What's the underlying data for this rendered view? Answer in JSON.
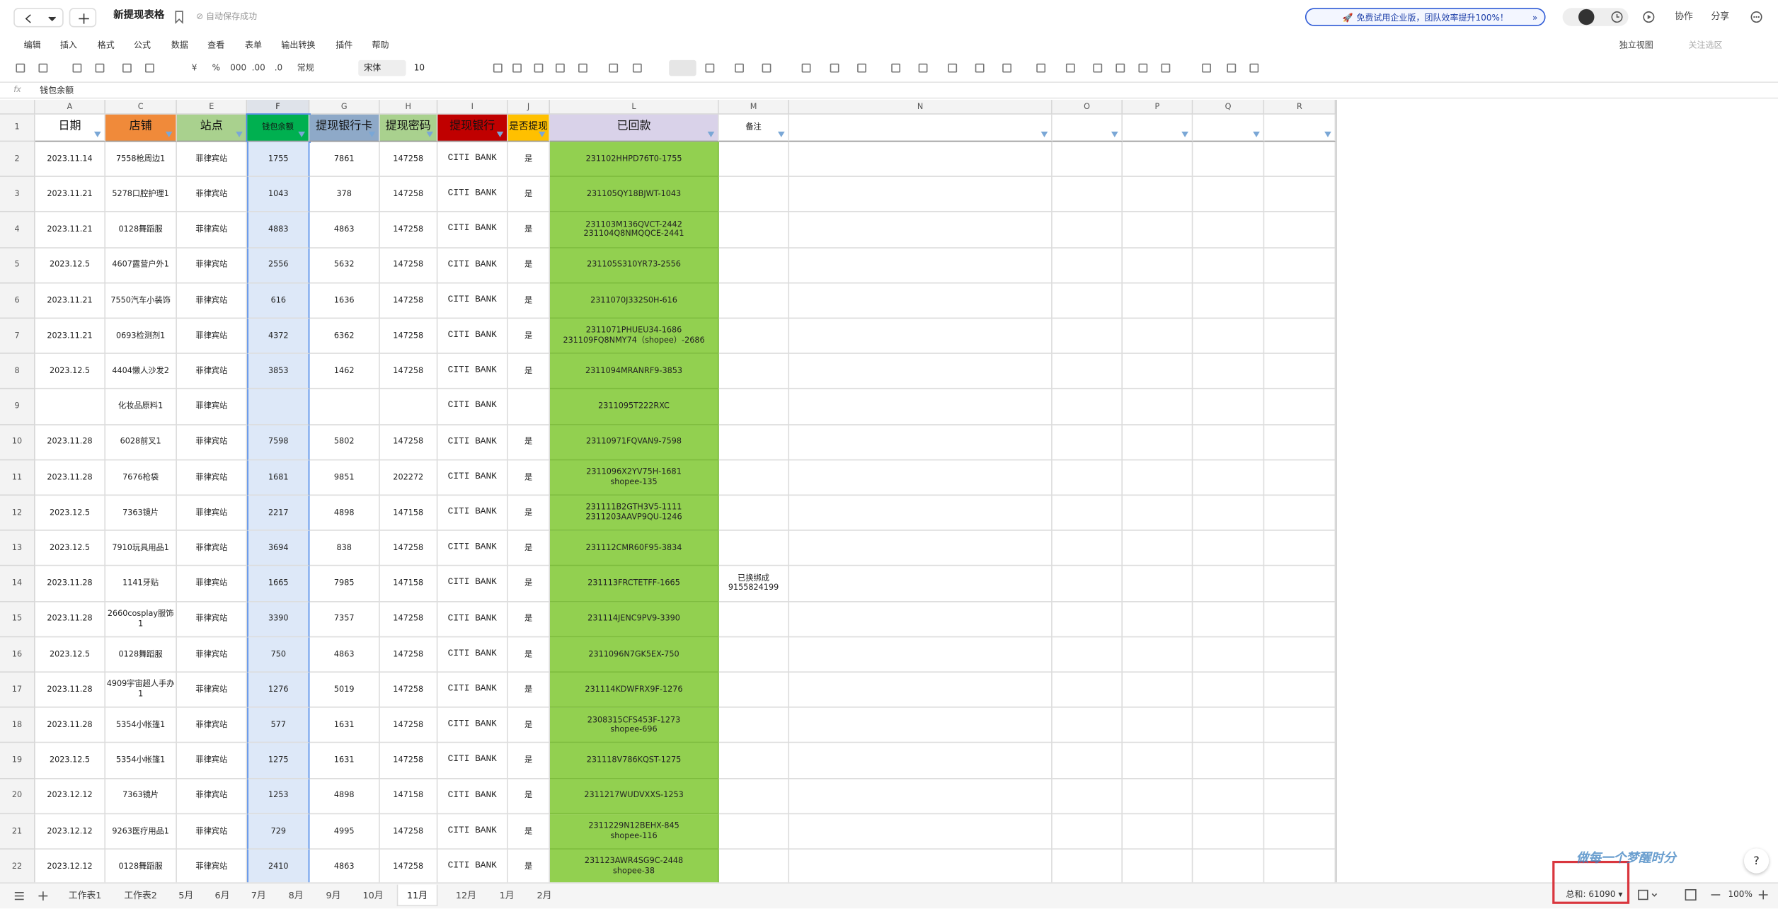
{
  "header": {
    "title": "新提现表格",
    "save_status": "自动保存成功",
    "promo": "免费试用企业版，团队效率提升100%！",
    "buttons": [
      "协作",
      "分享"
    ]
  },
  "menu": {
    "items": [
      "编辑",
      "插入",
      "格式",
      "公式",
      "数据",
      "查看",
      "表单",
      "输出转换",
      "插件",
      "帮助"
    ],
    "right": [
      "独立视图",
      "关注选区"
    ]
  },
  "toolbar": {
    "currency": "¥",
    "percent": "%",
    "thousands": "000",
    "inc_decimal": ".00",
    "dec_decimal": ".0",
    "number_format": "常规",
    "font": "宋体",
    "font_size": "10"
  },
  "formula_bar": {
    "label": "fx",
    "content": "钱包余额"
  },
  "grid": {
    "columns": [
      "A",
      "C",
      "E",
      "F",
      "G",
      "H",
      "I",
      "J",
      "L",
      "M",
      "N",
      "O",
      "P",
      "Q",
      "R"
    ],
    "row_numbers": [
      "1",
      "2",
      "3",
      "4",
      "5",
      "6",
      "7",
      "8",
      "9",
      "10",
      "11",
      "12",
      "13",
      "14",
      "15",
      "16",
      "17",
      "18",
      "19",
      "20",
      "21",
      "22"
    ],
    "header": [
      "日期",
      "店铺",
      "站点",
      "钱包余额",
      "提现银行卡",
      "提现密码",
      "提现银行",
      "是否提现",
      "已回款",
      "备注"
    ],
    "rows": [
      [
        "2023.11.14",
        "7558枪周边1",
        "菲律宾站",
        "1755",
        "7861",
        "147258",
        "CITI BANK",
        "是",
        "231102HHPD76T0-1755",
        ""
      ],
      [
        "2023.11.21",
        "5278口腔护理1",
        "菲律宾站",
        "1043",
        "378",
        "147258",
        "CITI BANK",
        "是",
        "231105QY18BJWT-1043",
        ""
      ],
      [
        "2023.11.21",
        "0128舞蹈服",
        "菲律宾站",
        "4883",
        "4863",
        "147258",
        "CITI BANK",
        "是",
        "231103M136QVCT-2442\n231104Q8NMQQCE-2441",
        ""
      ],
      [
        "2023.12.5",
        "4607露营户外1",
        "菲律宾站",
        "2556",
        "5632",
        "147258",
        "CITI BANK",
        "是",
        "231105S310YR73-2556",
        ""
      ],
      [
        "2023.11.21",
        "7550汽车小装饰",
        "菲律宾站",
        "616",
        "1636",
        "147258",
        "CITI BANK",
        "是",
        "2311070J332S0H-616",
        ""
      ],
      [
        "2023.11.21",
        "0693检测剂1",
        "菲律宾站",
        "4372",
        "6362",
        "147258",
        "CITI BANK",
        "是",
        "2311071PHUEU34-1686\n231109FQ8NMY74（shopee）-2686",
        ""
      ],
      [
        "2023.12.5",
        "4404懒人沙发2",
        "菲律宾站",
        "3853",
        "1462",
        "147258",
        "CITI BANK",
        "是",
        "2311094MRANRF9-3853",
        ""
      ],
      [
        "",
        "化妆品原料1",
        "菲律宾站",
        "",
        "",
        "",
        "CITI BANK",
        "",
        "2311095T222RXC",
        ""
      ],
      [
        "2023.11.28",
        "6028前叉1",
        "菲律宾站",
        "7598",
        "5802",
        "147258",
        "CITI BANK",
        "是",
        "23110971FQVAN9-7598",
        ""
      ],
      [
        "2023.11.28",
        "7676枪袋",
        "菲律宾站",
        "1681",
        "9851",
        "202272",
        "CITI BANK",
        "是",
        "2311096X2YV75H-1681\nshopee-135",
        ""
      ],
      [
        "2023.12.5",
        "7363镜片",
        "菲律宾站",
        "2217",
        "4898",
        "147158",
        "CITI BANK",
        "是",
        "231111B2GTH3V5-1111\n2311203AAVP9QU-1246",
        ""
      ],
      [
        "2023.12.5",
        "7910玩具用品1",
        "菲律宾站",
        "3694",
        "838",
        "147258",
        "CITI BANK",
        "是",
        "231112CMR60F95-3834",
        ""
      ],
      [
        "2023.11.28",
        "1141牙贴",
        "菲律宾站",
        "1665",
        "7985",
        "147158",
        "CITI BANK",
        "是",
        "231113FRCTETFF-1665",
        "已换绑成\n9155824199"
      ],
      [
        "2023.11.28",
        "2660cosplay服饰1",
        "菲律宾站",
        "3390",
        "7357",
        "147258",
        "CITI BANK",
        "是",
        "231114JENC9PV9-3390",
        ""
      ],
      [
        "2023.12.5",
        "0128舞蹈服",
        "菲律宾站",
        "750",
        "4863",
        "147258",
        "CITI BANK",
        "是",
        "2311096N7GK5EX-750",
        ""
      ],
      [
        "2023.11.28",
        "4909宇宙超人手办1",
        "菲律宾站",
        "1276",
        "5019",
        "147258",
        "CITI BANK",
        "是",
        "231114KDWFRX9F-1276",
        ""
      ],
      [
        "2023.11.28",
        "5354小帐篷1",
        "菲律宾站",
        "577",
        "1631",
        "147258",
        "CITI BANK",
        "是",
        "2308315CFS453F-1273\nshopee-696",
        ""
      ],
      [
        "2023.12.5",
        "5354小帐篷1",
        "菲律宾站",
        "1275",
        "1631",
        "147258",
        "CITI BANK",
        "是",
        "231118V786KQST-1275",
        ""
      ],
      [
        "2023.12.12",
        "7363镜片",
        "菲律宾站",
        "1253",
        "4898",
        "147158",
        "CITI BANK",
        "是",
        "2311217WUDVXXS-1253",
        ""
      ],
      [
        "2023.12.12",
        "9263医疗用品1",
        "菲律宾站",
        "729",
        "4995",
        "147258",
        "CITI BANK",
        "是",
        "2311229N12BEHX-845\nshopee-116",
        ""
      ],
      [
        "2023.12.12",
        "0128舞蹈服",
        "菲律宾站",
        "2410",
        "4863",
        "147258",
        "CITI BANK",
        "是",
        "231123AWR4SG9C-2448\nshopee-38",
        ""
      ]
    ]
  },
  "sheet_tabs": {
    "tabs": [
      "工作表1",
      "工作表2",
      "5月",
      "6月",
      "7月",
      "8月",
      "9月",
      "10月",
      "11月",
      "12月",
      "1月",
      "2月"
    ],
    "active": "11月"
  },
  "status_bar": {
    "sum": "总和: 61090",
    "zoom": "100%"
  },
  "watermark": "做每一个梦醒时分"
}
